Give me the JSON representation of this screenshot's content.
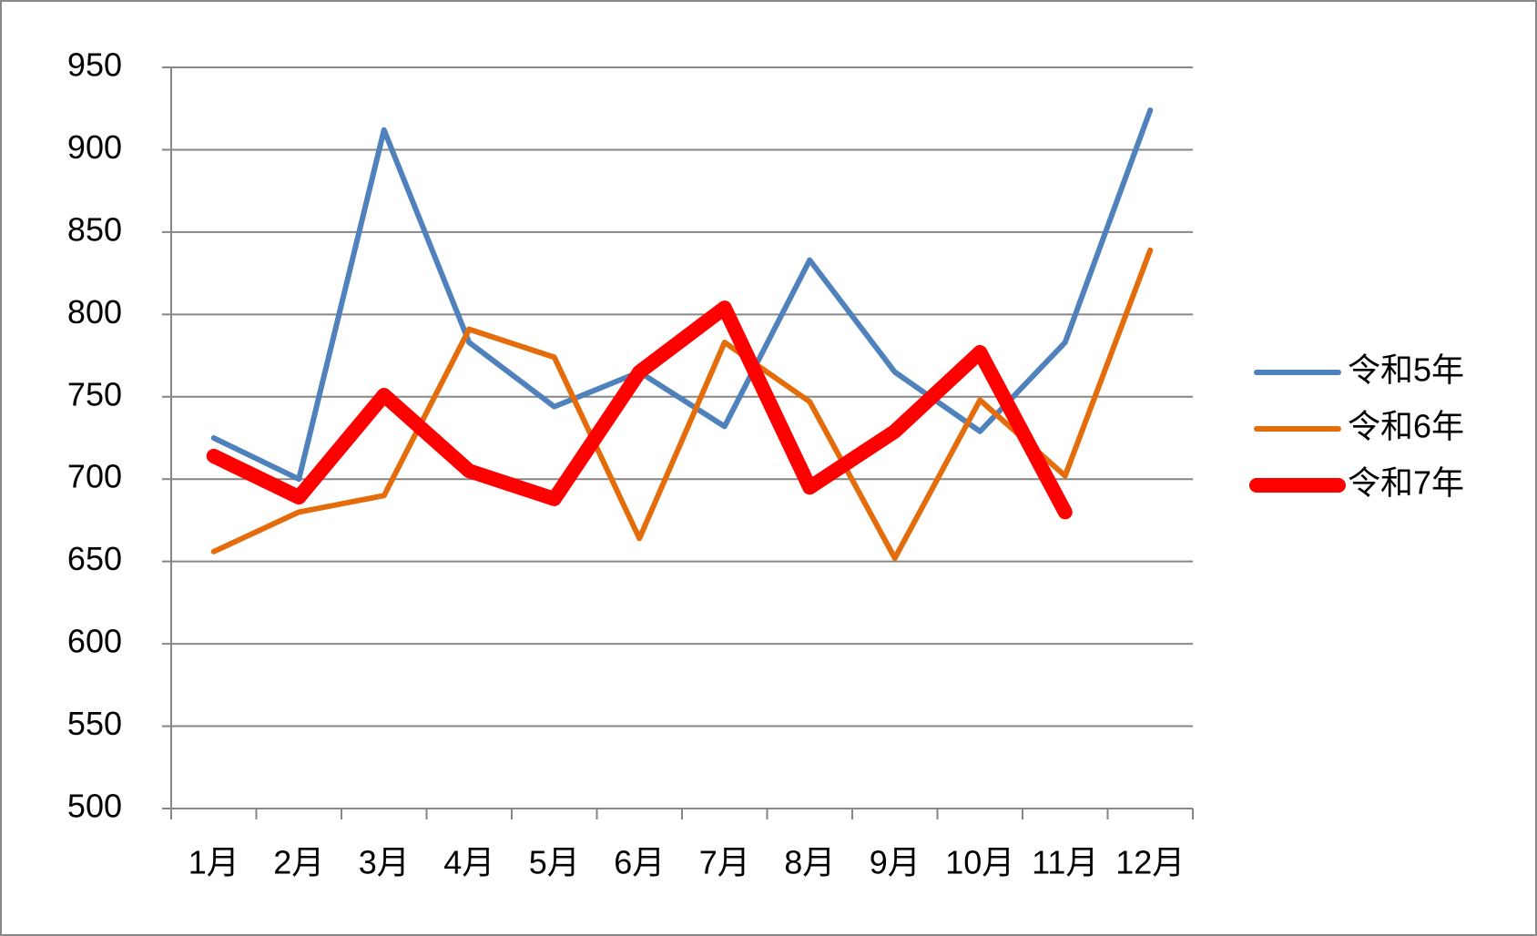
{
  "chart_data": {
    "type": "line",
    "categories": [
      "1月",
      "2月",
      "3月",
      "4月",
      "5月",
      "6月",
      "7月",
      "8月",
      "9月",
      "10月",
      "11月",
      "12月"
    ],
    "series": [
      {
        "name": "令和5年",
        "color": "#4f81bd",
        "width": 6,
        "values": [
          725,
          700,
          912,
          783,
          744,
          765,
          732,
          833,
          765,
          729,
          783,
          924
        ]
      },
      {
        "name": "令和6年",
        "color": "#e46c0a",
        "width": 6,
        "values": [
          656,
          680,
          690,
          791,
          774,
          664,
          783,
          747,
          652,
          748,
          702,
          839
        ]
      },
      {
        "name": "令和7年",
        "color": "#ff0000",
        "width": 16,
        "values": [
          714,
          689,
          751,
          705,
          688,
          765,
          804,
          695,
          729,
          777,
          680,
          null
        ]
      }
    ],
    "ylim": [
      500,
      950
    ],
    "yticks": [
      500,
      550,
      600,
      650,
      700,
      750,
      800,
      850,
      900,
      950
    ],
    "grid": true,
    "legend": "right"
  }
}
